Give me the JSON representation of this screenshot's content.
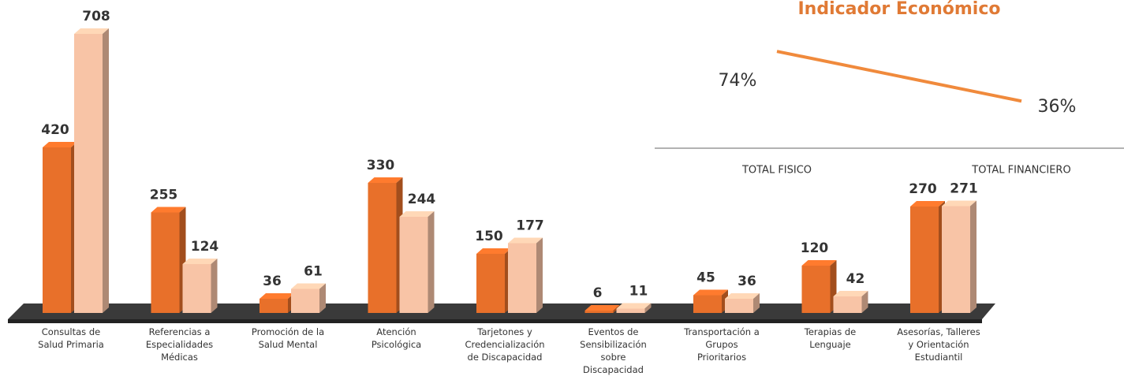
{
  "chart_data": [
    {
      "type": "bar3d",
      "categories": [
        "Consultas de\nSalud Primaria",
        "Referencias a\nEspecialidades\nMédicas",
        "Promoción de la\nSalud Mental",
        "Atención\nPsicológica",
        "Tarjetones y\nCredencialización\nde Discapacidad",
        "Eventos de\nSensibilización\nsobre\nDiscapacidad",
        "Transportación a\nGrupos\nPrioritarios",
        "Terapias de\nLenguaje",
        "Asesorías, Talleres\ny Orientación\nEstudiantil"
      ],
      "series": [
        {
          "color": "#e8702a",
          "values": [
            420,
            255,
            36,
            330,
            150,
            6,
            45,
            120,
            270
          ]
        },
        {
          "color": "#f8c4a6",
          "values": [
            708,
            124,
            61,
            244,
            177,
            11,
            36,
            42,
            271
          ]
        }
      ]
    },
    {
      "type": "line",
      "title": "Indicador Económico",
      "categories": [
        "TOTAL FISICO",
        "TOTAL FINANCIERO"
      ],
      "values": [
        74,
        36
      ],
      "value_labels": [
        "74%",
        "36%"
      ],
      "color": "#f08a3c"
    }
  ]
}
